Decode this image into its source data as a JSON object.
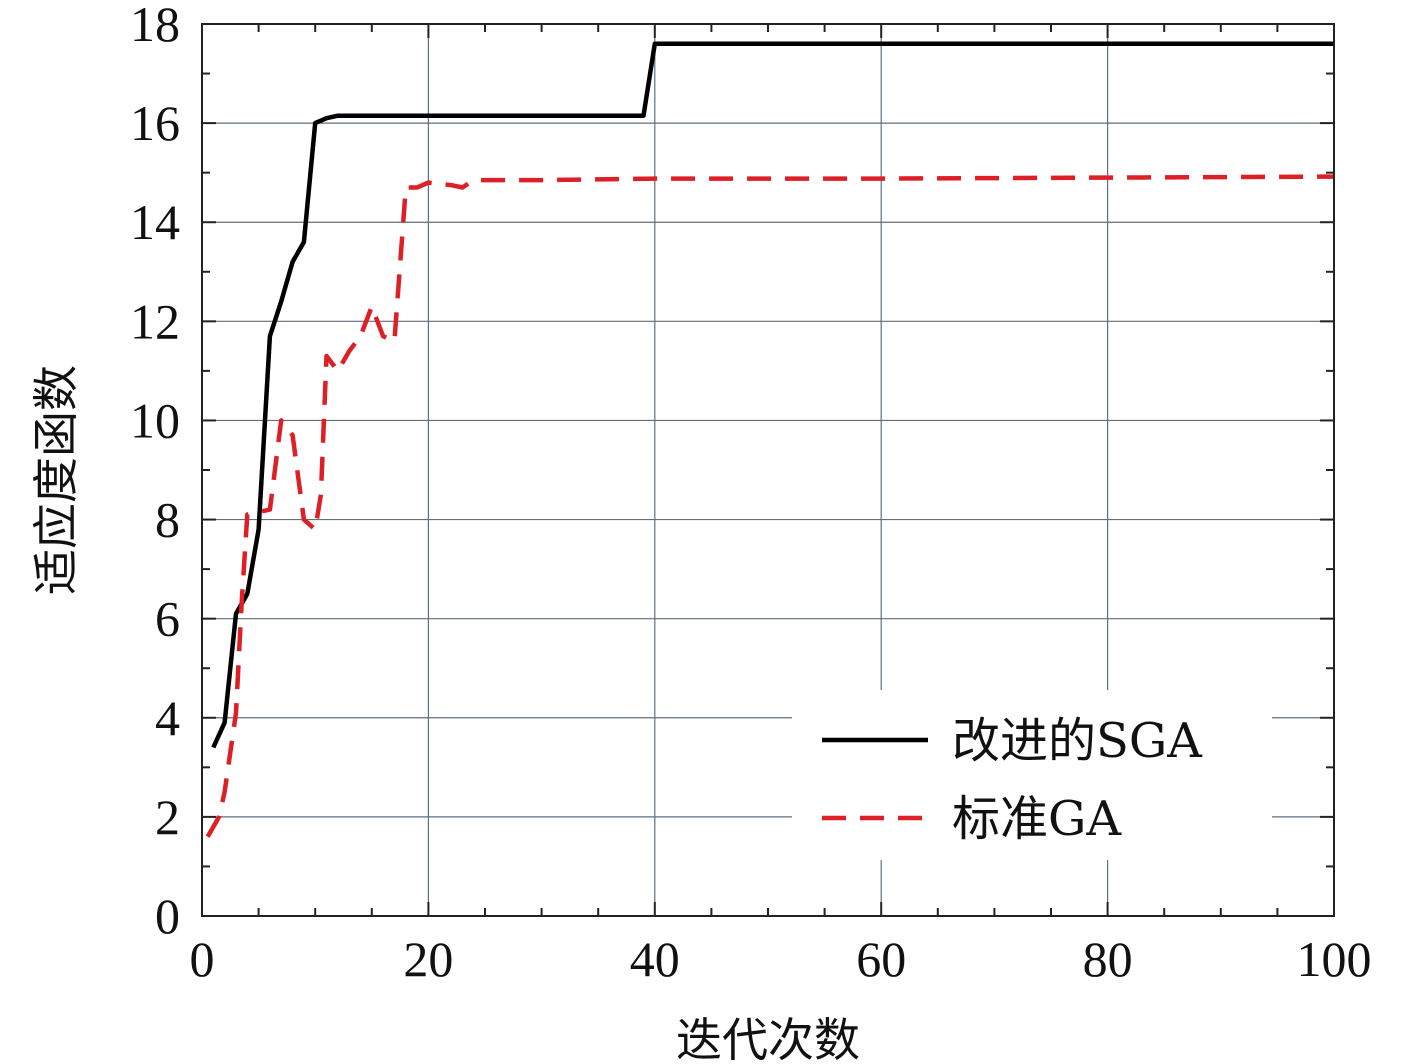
{
  "chart_data": {
    "type": "line",
    "title": "",
    "xlabel": "迭代次数",
    "ylabel": "适应度函数",
    "xlim": [
      0,
      100
    ],
    "ylim": [
      0,
      18
    ],
    "xticks": [
      0,
      20,
      40,
      60,
      80,
      100
    ],
    "yticks": [
      0,
      2,
      4,
      6,
      8,
      10,
      12,
      14,
      16,
      18
    ],
    "grid": true,
    "legend_position": "lower-right",
    "series": [
      {
        "name": "改进的SGA",
        "color": "#000000",
        "style": "solid",
        "x": [
          1,
          2,
          3,
          4,
          5,
          6,
          7,
          8,
          9,
          10,
          11,
          12,
          14,
          20,
          30,
          39,
          40,
          100
        ],
        "y": [
          3.4,
          3.9,
          6.1,
          6.5,
          7.8,
          11.7,
          12.4,
          13.2,
          13.6,
          16.0,
          16.1,
          16.15,
          16.15,
          16.15,
          16.15,
          16.15,
          17.6,
          17.6
        ]
      },
      {
        "name": "标准GA",
        "color": "#dd1f26",
        "style": "dashed",
        "x": [
          0.5,
          1.5,
          2,
          3,
          3.5,
          4,
          5,
          6,
          7,
          8,
          9,
          10,
          10.5,
          11,
          12,
          13,
          14,
          15,
          16,
          17,
          18,
          19,
          20,
          22,
          23,
          24,
          30,
          40,
          60,
          80,
          100
        ],
        "y": [
          1.6,
          2.0,
          2.5,
          4.1,
          6.3,
          8.1,
          8.15,
          8.2,
          10.0,
          9.7,
          8.0,
          7.8,
          8.5,
          11.3,
          11.0,
          11.4,
          11.7,
          12.3,
          11.7,
          11.6,
          14.7,
          14.7,
          14.8,
          14.75,
          14.7,
          14.85,
          14.85,
          14.88,
          14.88,
          14.9,
          14.92
        ]
      }
    ]
  }
}
